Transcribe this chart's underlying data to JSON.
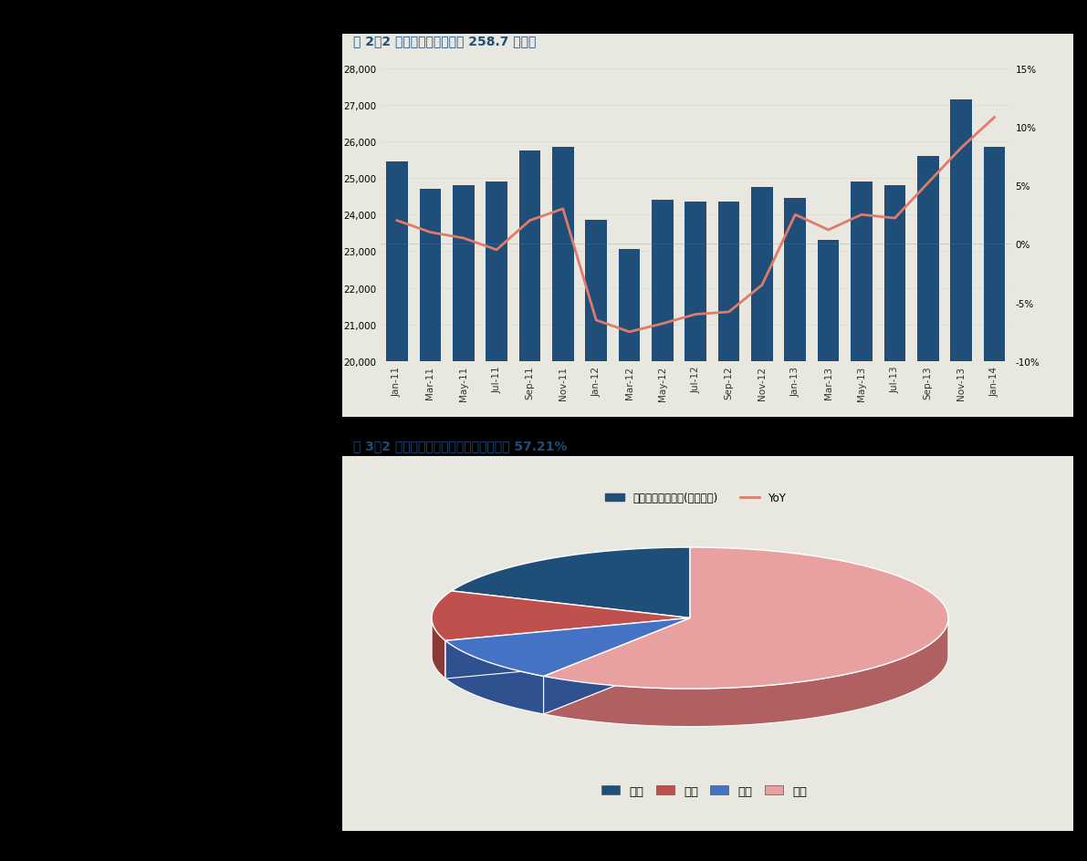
{
  "fig1_title": "图 2：2 月全球半导体销售额 258.7 亿美元",
  "fig2_title": "图 3：2 月亚太地区占全球半导体销售比重 57.21%",
  "months": [
    "Jan-11",
    "Mar-11",
    "May-11",
    "Jul-11",
    "Sep-11",
    "Nov-11",
    "Jan-12",
    "Mar-12",
    "May-12",
    "Jul-12",
    "Sep-12",
    "Nov-12",
    "Jan-13",
    "Mar-13",
    "May-13",
    "Jul-13",
    "Sep-13",
    "Nov-13",
    "Jan-14"
  ],
  "sales": [
    25450,
    24700,
    24800,
    24900,
    25750,
    25850,
    23850,
    23050,
    24400,
    24350,
    24350,
    24750,
    24450,
    23300,
    24900,
    24800,
    25600,
    27150,
    25850
  ],
  "yoy": [
    0.02,
    0.01,
    0.005,
    -0.005,
    0.02,
    0.03,
    -0.065,
    -0.075,
    -0.068,
    -0.06,
    -0.058,
    -0.035,
    0.025,
    0.012,
    0.025,
    0.022,
    0.052,
    0.082,
    0.108
  ],
  "bar_color": "#1F4E79",
  "line_color": "#E07B6A",
  "ylim_left": [
    20000,
    28000
  ],
  "ylim_right": [
    -0.1,
    0.15
  ],
  "yticks_left": [
    20000,
    21000,
    22000,
    23000,
    24000,
    25000,
    26000,
    27000,
    28000
  ],
  "yticks_right": [
    -0.1,
    -0.05,
    0.0,
    0.05,
    0.1,
    0.15
  ],
  "legend1_label": "全球半导体销售额(百万美元)",
  "legend2_label": "YoY",
  "pie_labels": [
    "美国",
    "欧洲",
    "日本",
    "亚太"
  ],
  "pie_values": [
    0.18,
    0.11,
    0.0979,
    0.5721
  ],
  "pie_colors_top": [
    "#1F4E79",
    "#C0504D",
    "#4472C4",
    "#E8A0A0"
  ],
  "pie_colors_side": [
    "#163A5A",
    "#8B3A38",
    "#2F5190",
    "#B06060"
  ],
  "pie_explode": [
    0.0,
    0.0,
    0.0,
    0.0
  ],
  "title_color": "#1F4E79",
  "bg_color": "#000000",
  "chart_bg": "#F0EFE8",
  "panel_bg": "#E8E7E0"
}
